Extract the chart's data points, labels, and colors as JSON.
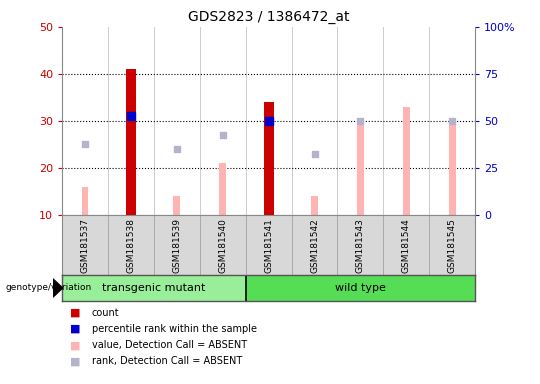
{
  "title": "GDS2823 / 1386472_at",
  "samples": [
    "GSM181537",
    "GSM181538",
    "GSM181539",
    "GSM181540",
    "GSM181541",
    "GSM181542",
    "GSM181543",
    "GSM181544",
    "GSM181545"
  ],
  "group_labels": [
    "transgenic mutant",
    "wild type"
  ],
  "group_transgenic_span": [
    0,
    3
  ],
  "group_wild_span": [
    4,
    8
  ],
  "count_values": [
    null,
    41,
    null,
    null,
    34,
    null,
    null,
    null,
    null
  ],
  "percentile_values": [
    null,
    31,
    null,
    null,
    30,
    null,
    null,
    null,
    null
  ],
  "absent_value_bars": [
    16,
    null,
    14,
    21,
    null,
    14,
    30,
    33,
    30
  ],
  "absent_rank_dots": [
    25,
    null,
    24,
    27,
    null,
    23,
    30,
    null,
    30
  ],
  "ylim_left": [
    10,
    50
  ],
  "ylim_right": [
    0,
    100
  ],
  "yticks_left": [
    10,
    20,
    30,
    40,
    50
  ],
  "yticks_right": [
    0,
    25,
    50,
    75,
    100
  ],
  "ytick_labels_right": [
    "0",
    "25",
    "50",
    "75",
    "100%"
  ],
  "color_count": "#cc0000",
  "color_percentile": "#0000cc",
  "color_absent_value": "#ffb3b3",
  "color_absent_rank": "#b3b3cc",
  "color_group_transgenic": "#99ee99",
  "color_group_wild": "#55dd55",
  "color_left_axis": "#cc0000",
  "color_right_axis": "#0000cc",
  "plot_bg": "#ffffff",
  "sample_bg": "#d8d8d8",
  "legend_items": [
    {
      "label": "count",
      "color": "#cc0000"
    },
    {
      "label": "percentile rank within the sample",
      "color": "#0000cc"
    },
    {
      "label": "value, Detection Call = ABSENT",
      "color": "#ffb3b3"
    },
    {
      "label": "rank, Detection Call = ABSENT",
      "color": "#b3b3cc"
    }
  ]
}
